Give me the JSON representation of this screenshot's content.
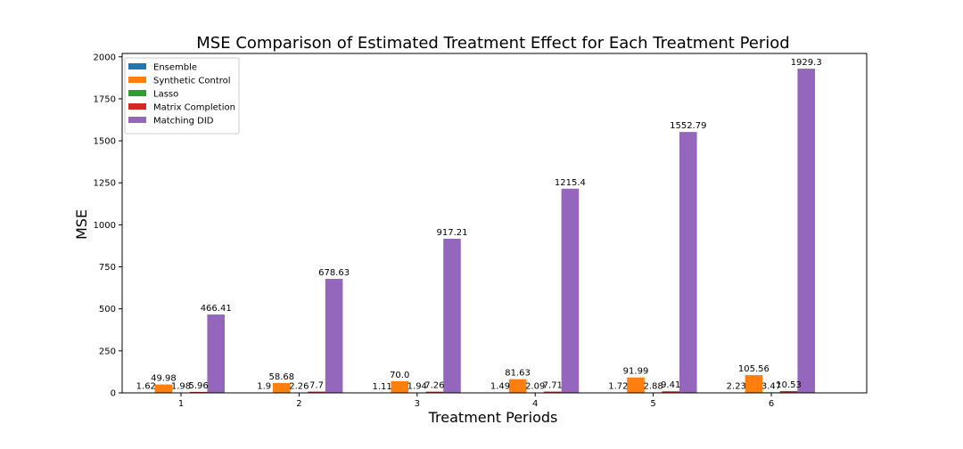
{
  "chart_data": {
    "type": "bar",
    "title": "MSE Comparison of Estimated Treatment Effect for Each Treatment Period",
    "xlabel": "Treatment Periods",
    "ylabel": "MSE",
    "categories": [
      "1",
      "2",
      "3",
      "4",
      "5",
      "6"
    ],
    "ylim": [
      0,
      2020
    ],
    "yticks": [
      "0",
      "250",
      "500",
      "750",
      "1000",
      "1250",
      "1500",
      "1750",
      "2000"
    ],
    "grid": false,
    "legend_position": "top-left",
    "series": [
      {
        "name": "Ensemble",
        "color": "#1f77b4",
        "values": [
          1.62,
          1.9,
          1.11,
          1.49,
          1.72,
          2.23
        ],
        "labels": [
          "1.62",
          "1.9",
          "1.11",
          "1.49",
          "1.72",
          "2.23"
        ]
      },
      {
        "name": "Synthetic Control",
        "color": "#ff7f0e",
        "values": [
          49.98,
          58.68,
          70.0,
          81.63,
          91.99,
          105.56
        ],
        "labels": [
          "49.98",
          "58.68",
          "70.0",
          "81.63",
          "91.99",
          "105.56"
        ]
      },
      {
        "name": "Lasso",
        "color": "#2ca02c",
        "values": [
          1.98,
          2.26,
          1.94,
          2.09,
          2.88,
          3.47
        ],
        "labels": [
          "1.98",
          "2.26",
          "1.94",
          "2.09",
          "2.88",
          "3.47"
        ]
      },
      {
        "name": "Matrix Completion",
        "color": "#d62728",
        "values": [
          5.96,
          7.7,
          7.26,
          7.71,
          9.41,
          10.53
        ],
        "labels": [
          "5.96",
          "7.7",
          "7.26",
          "7.71",
          "9.41",
          "10.53"
        ]
      },
      {
        "name": "Matching DID",
        "color": "#9467bd",
        "values": [
          466.41,
          678.63,
          917.21,
          1215.4,
          1552.79,
          1929.3
        ],
        "labels": [
          "466.41",
          "678.63",
          "917.21",
          "1215.4",
          "1552.79",
          "1929.3"
        ]
      }
    ]
  }
}
